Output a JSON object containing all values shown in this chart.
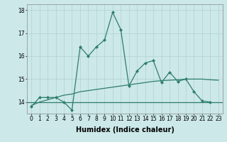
{
  "xlabel": "Humidex (Indice chaleur)",
  "x_values": [
    0,
    1,
    2,
    3,
    4,
    5,
    6,
    7,
    8,
    9,
    10,
    11,
    12,
    13,
    14,
    15,
    16,
    17,
    18,
    19,
    20,
    21,
    22,
    23
  ],
  "line1_y": [
    13.8,
    14.2,
    14.2,
    14.2,
    14.0,
    13.65,
    16.4,
    16.0,
    16.4,
    16.7,
    17.9,
    17.15,
    14.7,
    15.35,
    15.7,
    15.8,
    14.85,
    15.3,
    14.9,
    15.0,
    14.45,
    14.05,
    14.0,
    null
  ],
  "trend_y": [
    13.85,
    14.0,
    14.1,
    14.2,
    14.3,
    14.35,
    14.45,
    14.5,
    14.55,
    14.6,
    14.65,
    14.7,
    14.75,
    14.8,
    14.85,
    14.9,
    14.93,
    14.95,
    14.97,
    15.0,
    15.0,
    15.0,
    14.97,
    14.95
  ],
  "hline_y": 14.0,
  "line_color": "#2e7d6e",
  "bg_color": "#cce8e8",
  "grid_color": "#aacccc",
  "ylim": [
    13.5,
    18.25
  ],
  "xlim": [
    -0.5,
    23.5
  ],
  "yticks": [
    14,
    15,
    16,
    17,
    18
  ],
  "xticks": [
    0,
    1,
    2,
    3,
    4,
    5,
    6,
    7,
    8,
    9,
    10,
    11,
    12,
    13,
    14,
    15,
    16,
    17,
    18,
    19,
    20,
    21,
    22,
    23
  ],
  "tick_fontsize": 5.5,
  "label_fontsize": 7,
  "marker": "D",
  "markersize": 2.0,
  "linewidth": 0.9
}
